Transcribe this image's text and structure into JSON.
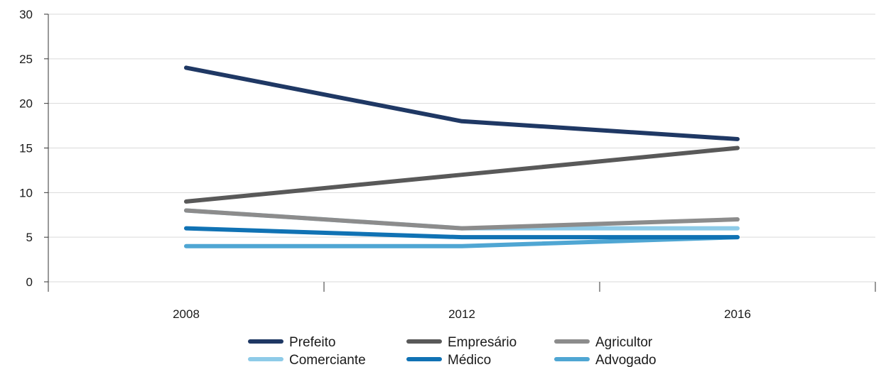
{
  "chart_data": {
    "type": "line",
    "title": "",
    "xlabel": "",
    "ylabel": "",
    "x": [
      "2008",
      "2012",
      "2016"
    ],
    "ylim": [
      0,
      30
    ],
    "yticks": [
      0,
      5,
      10,
      15,
      20,
      25,
      30
    ],
    "grid": "horizontal",
    "legend_position": "bottom",
    "series": [
      {
        "name": "Prefeito",
        "color": "#1f3864",
        "values": [
          24,
          18,
          16
        ]
      },
      {
        "name": "Empresário",
        "color": "#595959",
        "values": [
          9,
          12,
          15
        ]
      },
      {
        "name": "Agricultor",
        "color": "#8c8c8c",
        "values": [
          8,
          6,
          7
        ]
      },
      {
        "name": "Comerciante",
        "color": "#8ecbe8",
        "values": [
          8,
          6,
          6
        ]
      },
      {
        "name": "Médico",
        "color": "#1072b4",
        "values": [
          6,
          5,
          5
        ]
      },
      {
        "name": "Advogado",
        "color": "#4fa6d3",
        "values": [
          4,
          4,
          5
        ]
      }
    ]
  }
}
